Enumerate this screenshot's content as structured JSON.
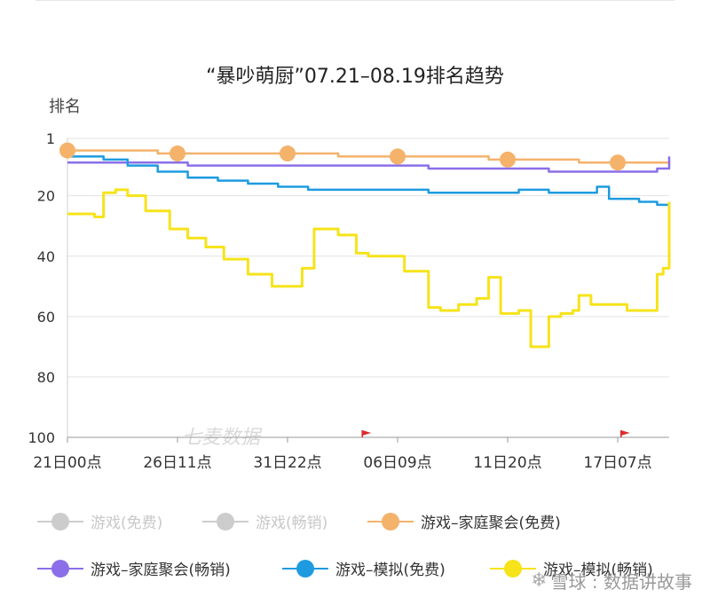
{
  "chart_data": {
    "type": "line",
    "title": "“暴吵萌厨”07.21–08.19排名趋势",
    "ylabel": "排名",
    "ylim": [
      1,
      100
    ],
    "y_inverted": true,
    "y_ticks": [
      "1",
      "20",
      "40",
      "60",
      "80",
      "100"
    ],
    "x_ticks": [
      "21日00点",
      "26日11点",
      "31日22点",
      "06日09点",
      "11日20点",
      "17日07点"
    ],
    "x_range": [
      "21日00点",
      "19日"
    ],
    "grid": true,
    "legend_position": "bottom",
    "inner_watermark": "七麦数据",
    "series": [
      {
        "name": "游戏(免费)",
        "color": "#cccccc",
        "disabled": true,
        "values": []
      },
      {
        "name": "游戏(畅销)",
        "color": "#cccccc",
        "disabled": true,
        "values": []
      },
      {
        "name": "游戏–家庭聚会(免费)",
        "color": "#f4b26b",
        "x": [
          0,
          0.05,
          0.1,
          0.15,
          0.2,
          0.25,
          0.3,
          0.35,
          0.4,
          0.45,
          0.5,
          0.55,
          0.6,
          0.65,
          0.7,
          0.75,
          0.8,
          0.85,
          0.9,
          0.95,
          1.0
        ],
        "values": [
          5,
          5,
          5,
          6,
          6,
          6,
          6,
          6,
          6,
          7,
          7,
          7,
          7,
          7,
          8,
          8,
          8,
          9,
          9,
          9,
          10
        ]
      },
      {
        "name": "游戏–家庭聚会(畅销)",
        "color": "#8b6fe8",
        "x": [
          0,
          0.05,
          0.1,
          0.15,
          0.2,
          0.25,
          0.3,
          0.35,
          0.4,
          0.45,
          0.5,
          0.55,
          0.6,
          0.65,
          0.7,
          0.75,
          0.8,
          0.85,
          0.9,
          0.95,
          0.98,
          1.0
        ],
        "values": [
          9,
          9,
          9,
          9,
          10,
          10,
          10,
          10,
          10,
          10,
          10,
          10,
          11,
          11,
          11,
          11,
          12,
          12,
          12,
          12,
          11,
          7
        ]
      },
      {
        "name": "游戏–模拟(免费)",
        "color": "#1e9be0",
        "x": [
          0,
          0.03,
          0.06,
          0.1,
          0.15,
          0.2,
          0.25,
          0.3,
          0.35,
          0.4,
          0.45,
          0.5,
          0.55,
          0.6,
          0.65,
          0.7,
          0.75,
          0.8,
          0.85,
          0.88,
          0.9,
          0.95,
          0.98,
          1.0
        ],
        "values": [
          7,
          7,
          8,
          10,
          12,
          14,
          15,
          16,
          17,
          18,
          18,
          18,
          18,
          19,
          19,
          19,
          18,
          19,
          19,
          17,
          21,
          22,
          23,
          26
        ]
      },
      {
        "name": "游戏–模拟(畅销)",
        "color": "#f6e31a",
        "x": [
          0,
          0.03,
          0.045,
          0.06,
          0.08,
          0.1,
          0.13,
          0.17,
          0.2,
          0.23,
          0.26,
          0.3,
          0.34,
          0.37,
          0.39,
          0.41,
          0.45,
          0.48,
          0.5,
          0.53,
          0.56,
          0.6,
          0.62,
          0.65,
          0.68,
          0.7,
          0.72,
          0.75,
          0.77,
          0.8,
          0.82,
          0.84,
          0.85,
          0.87,
          0.9,
          0.93,
          0.96,
          0.98,
          0.99,
          1.0
        ],
        "values": [
          26,
          26,
          27,
          19,
          18,
          20,
          25,
          31,
          34,
          37,
          41,
          46,
          50,
          50,
          44,
          31,
          33,
          39,
          40,
          40,
          45,
          57,
          58,
          56,
          54,
          47,
          59,
          58,
          70,
          60,
          59,
          58,
          53,
          56,
          56,
          58,
          58,
          46,
          44,
          22
        ]
      }
    ]
  },
  "legend": {
    "items": [
      {
        "label": "游戏(免费)",
        "color": "#cccccc"
      },
      {
        "label": "游戏(畅销)",
        "color": "#cccccc"
      },
      {
        "label": "游戏–家庭聚会(免费)",
        "color": "#f4b26b"
      },
      {
        "label": "游戏–家庭聚会(畅销)",
        "color": "#8b6fe8"
      },
      {
        "label": "游戏–模拟(免费)",
        "color": "#1e9be0"
      },
      {
        "label": "游戏–模拟(畅销)",
        "color": "#f6e31a"
      }
    ]
  },
  "watermark": {
    "text": "雪球 : 数据讲故事",
    "logo": "snowball-logo-icon"
  }
}
